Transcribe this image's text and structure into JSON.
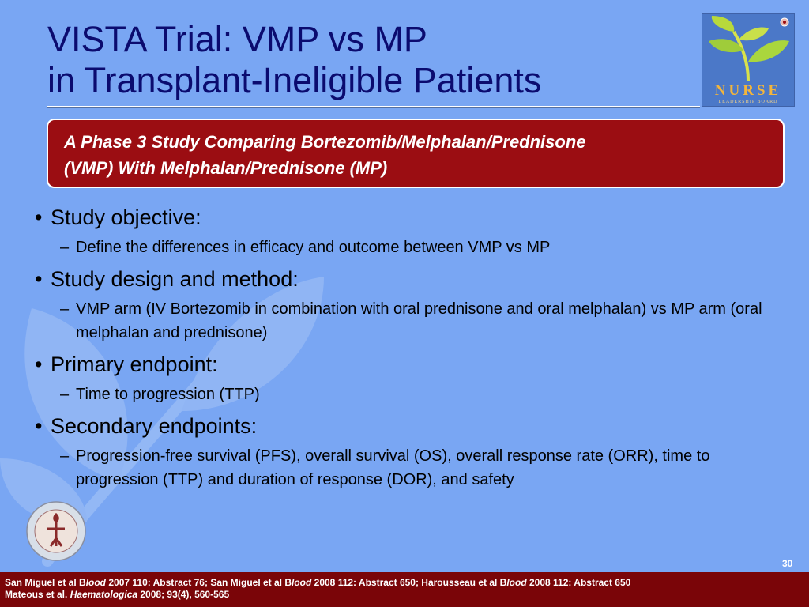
{
  "title": {
    "line1": "VISTA Trial: VMP vs MP",
    "line2": "in Transplant-Ineligible Patients"
  },
  "logo": {
    "text": "NURSE",
    "subtext": "LEADERSHIP BOARD"
  },
  "banner": {
    "line1": "A Phase 3 Study Comparing Bortezomib/Melphalan/Prednisone",
    "line2": "(VMP) With Melphalan/Prednisone (MP)"
  },
  "bullets": [
    {
      "text": "Study objective:",
      "sub": "Define the differences in efficacy and outcome between VMP vs MP"
    },
    {
      "text": "Study design and method:",
      "sub": "VMP arm (IV Bortezomib in combination with oral prednisone and oral melphalan) vs MP arm (oral melphalan and prednisone)"
    },
    {
      "text": "Primary endpoint:",
      "sub": "Time to progression (TTP)"
    },
    {
      "text": "Secondary endpoints:",
      "sub": "Progression-free survival (PFS), overall survival (OS), overall response rate (ORR), time to progression (TTP) and duration of response (DOR), and safety"
    }
  ],
  "bullet_glyph": "•",
  "dash_glyph": "–",
  "page_number": "30",
  "footer": {
    "p1": "San Miguel et al B",
    "i1": "lood",
    "p2": " 2007 110: Abstract 76; San Miguel et al B",
    "i2": "lood",
    "p3": " 2008 112: Abstract 650; Harousseau et al B",
    "i3": "lood",
    "p4": "  2008 112: Abstract 650",
    "p5": "Mateous et al. ",
    "i5": "Haematologica",
    "p6": " 2008; 93(4), 560-565"
  },
  "colors": {
    "background": "#79a6f3",
    "title": "#0b0b6f",
    "banner": "#9b0d12",
    "footer": "#7a0508"
  },
  "icons": {
    "background": "leaf-watermark-icon",
    "logo": "plant-sprout-icon",
    "seal": "medical-seal-icon"
  }
}
